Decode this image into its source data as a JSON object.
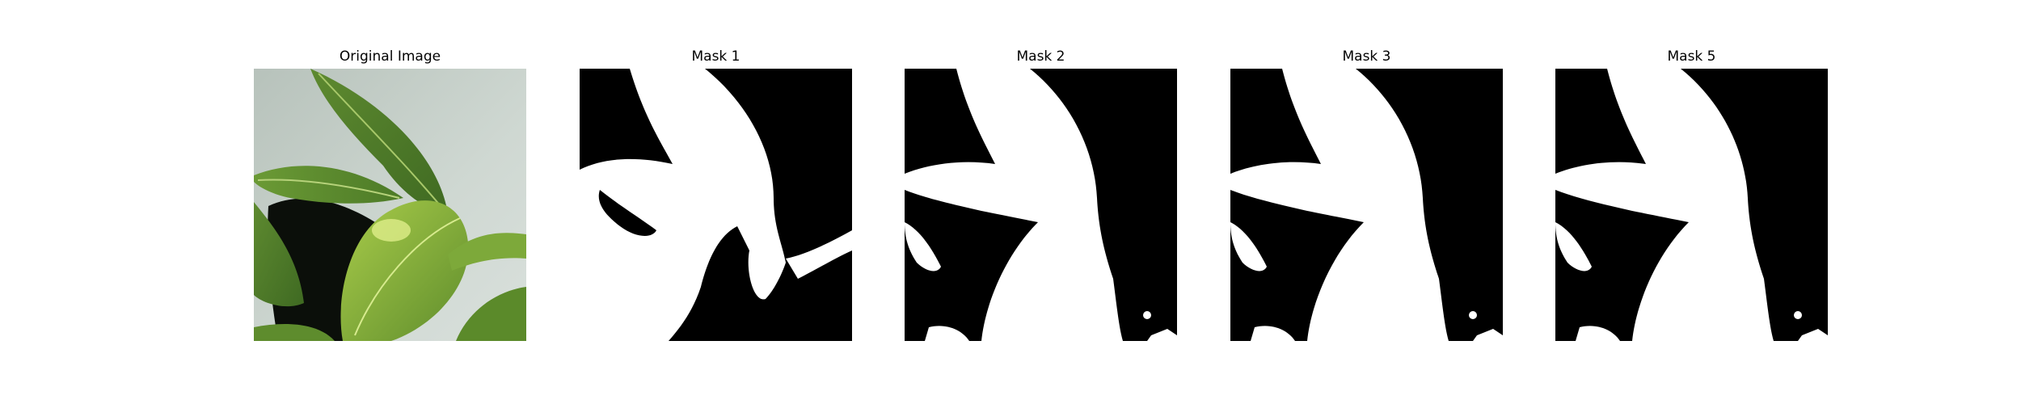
{
  "figure": {
    "panels": [
      {
        "title": "Original Image",
        "kind": "photo"
      },
      {
        "title": "Mask 1",
        "kind": "mask"
      },
      {
        "title": "Mask 2",
        "kind": "mask"
      },
      {
        "title": "Mask 3",
        "kind": "mask"
      },
      {
        "title": "Mask 5",
        "kind": "mask"
      }
    ]
  },
  "colors": {
    "background": "#ffffff",
    "mask_background": "#000000",
    "mask_foreground": "#ffffff",
    "wall": "#c9d3cd",
    "leaf_dark": "#4f7a2a",
    "leaf_light": "#86b23e",
    "pot": "#0b0f0a"
  }
}
